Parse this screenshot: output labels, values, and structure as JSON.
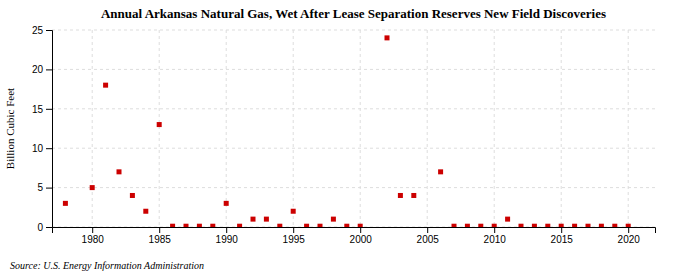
{
  "chart_data": {
    "type": "scatter",
    "title": "Annual Arkansas Natural Gas, Wet After Lease Separation Reserves New Field Discoveries",
    "ylabel": "Billion Cubic Feet",
    "source": "Source: U.S. Energy Information Administration",
    "x": [
      1978,
      1980,
      1981,
      1982,
      1983,
      1984,
      1985,
      1986,
      1987,
      1988,
      1989,
      1990,
      1991,
      1992,
      1993,
      1994,
      1995,
      1996,
      1997,
      1998,
      1999,
      2000,
      2002,
      2003,
      2004,
      2006,
      2007,
      2008,
      2009,
      2010,
      2011,
      2012,
      2013,
      2014,
      2015,
      2016,
      2017,
      2018,
      2019,
      2020
    ],
    "values": [
      3.0,
      5.0,
      18.0,
      7.0,
      4.0,
      2.0,
      13.0,
      0.1,
      0.1,
      0.1,
      0.1,
      3.0,
      0.1,
      1.0,
      1.0,
      0.1,
      2.0,
      0.1,
      0.1,
      1.0,
      0.1,
      0.1,
      24.0,
      4.0,
      4.0,
      7.0,
      0.1,
      0.1,
      0.1,
      0.1,
      1.0,
      0.1,
      0.1,
      0.1,
      0.1,
      0.1,
      0.1,
      0.1,
      0.1,
      0.1
    ],
    "color": "#cc0000",
    "marker": "square",
    "xlim": [
      1977,
      2022
    ],
    "ylim": [
      0,
      25
    ],
    "xticks": [
      1980,
      1985,
      1990,
      1995,
      2000,
      2005,
      2010,
      2015,
      2020
    ],
    "yticks": [
      0,
      5,
      10,
      15,
      20,
      25
    ],
    "grid": true
  }
}
